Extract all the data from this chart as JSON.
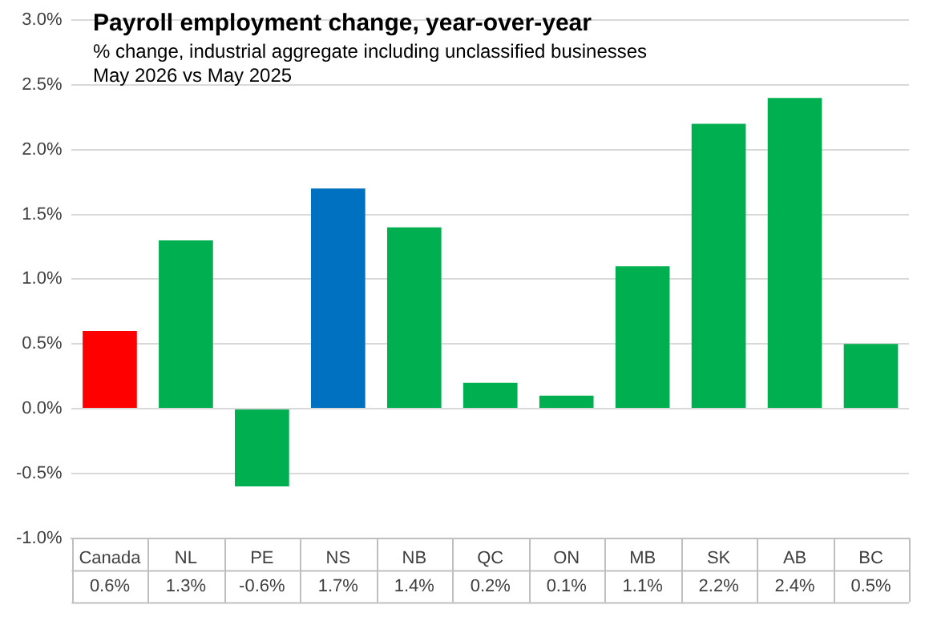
{
  "chart_data": {
    "type": "bar",
    "title": "Payroll employment change, year-over-year",
    "subtitle": "% change, industrial aggregate  including unclassified businesses",
    "annotations": [
      "May 2026 vs May 2025"
    ],
    "categories": [
      "Canada",
      "NL",
      "PE",
      "NS",
      "NB",
      "QC",
      "ON",
      "MB",
      "SK",
      "AB",
      "BC"
    ],
    "values": [
      0.6,
      1.3,
      -0.6,
      1.7,
      1.4,
      0.2,
      0.1,
      1.1,
      2.2,
      2.4,
      0.5
    ],
    "colors": [
      "#ff0000",
      "#00b050",
      "#00b050",
      "#0070c0",
      "#00b050",
      "#00b050",
      "#00b050",
      "#00b050",
      "#00b050",
      "#00b050",
      "#00b050"
    ],
    "value_labels": [
      "0.6%",
      "1.3%",
      "-0.6%",
      "1.7%",
      "1.4%",
      "0.2%",
      "0.1%",
      "1.1%",
      "2.2%",
      "2.4%",
      "0.5%"
    ],
    "ylim": [
      -1,
      3
    ],
    "yticks": [
      {
        "value": -1,
        "label": "-1.0%"
      },
      {
        "value": -0.5,
        "label": "-0.5%"
      },
      {
        "value": 0,
        "label": "0.0%"
      },
      {
        "value": 0.5,
        "label": "0.5%"
      },
      {
        "value": 1,
        "label": "1.0%"
      },
      {
        "value": 1.5,
        "label": "1.5%"
      },
      {
        "value": 2,
        "label": "2.0%"
      },
      {
        "value": 2.5,
        "label": "2.5%"
      },
      {
        "value": 3,
        "label": "3.0%"
      }
    ],
    "grid": "y",
    "legend": false
  }
}
